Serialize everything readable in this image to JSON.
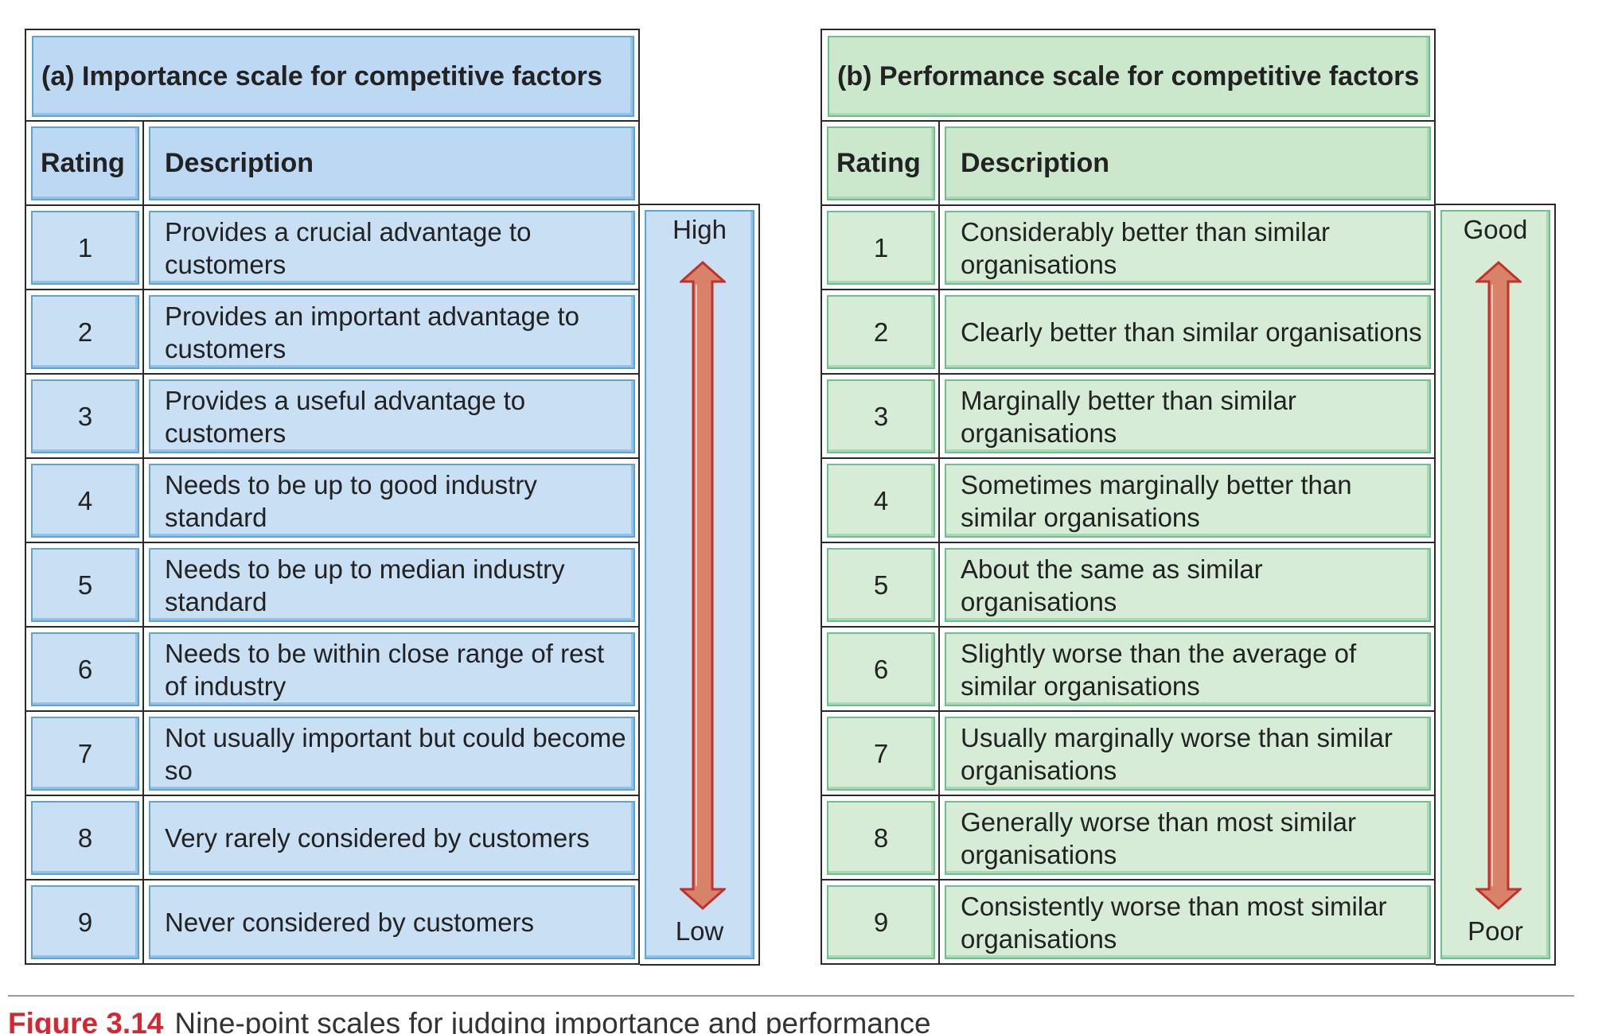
{
  "panel_a": {
    "title": "(a) Importance scale for competitive factors",
    "headers": {
      "rating": "Rating",
      "description": "Description"
    },
    "rows": [
      {
        "rating": "1",
        "description": "Provides a crucial advantage to customers"
      },
      {
        "rating": "2",
        "description": "Provides an important advantage to customers"
      },
      {
        "rating": "3",
        "description": "Provides a useful advantage to customers"
      },
      {
        "rating": "4",
        "description": "Needs to be up to good industry standard"
      },
      {
        "rating": "5",
        "description": "Needs to be up to median industry standard"
      },
      {
        "rating": "6",
        "description": "Needs to be within close range of rest of industry"
      },
      {
        "rating": "7",
        "description": "Not usually important but could become so"
      },
      {
        "rating": "8",
        "description": "Very rarely considered by customers"
      },
      {
        "rating": "9",
        "description": "Never considered by customers"
      }
    ],
    "scale": {
      "top": "High",
      "bottom": "Low"
    }
  },
  "panel_b": {
    "title": "(b)  Performance scale for competitive factors",
    "headers": {
      "rating": "Rating",
      "description": "Description"
    },
    "rows": [
      {
        "rating": "1",
        "description": "Considerably better than similar organisations"
      },
      {
        "rating": "2",
        "description": "Clearly better than similar organisations"
      },
      {
        "rating": "3",
        "description": "Marginally better than similar organisations"
      },
      {
        "rating": "4",
        "description": "Sometimes marginally better than similar organisations"
      },
      {
        "rating": "5",
        "description": "About the same as similar organisations"
      },
      {
        "rating": "6",
        "description": "Slightly worse than the average of similar organisations"
      },
      {
        "rating": "7",
        "description": "Usually marginally worse than similar organisations"
      },
      {
        "rating": "8",
        "description": "Generally worse than most similar organisations"
      },
      {
        "rating": "9",
        "description": "Consistently worse than most similar organisations"
      }
    ],
    "scale": {
      "top": "Good",
      "bottom": "Poor"
    }
  },
  "caption": {
    "label": "Figure 3.14",
    "text": "Nine-point scales for judging importance and performance"
  },
  "colors": {
    "panel_a_fill": "#c8dff4",
    "panel_b_fill": "#d6ecd6",
    "arrow_fill": "#d9826a",
    "arrow_stroke": "#c0322b",
    "figure_label": "#d8262f"
  }
}
